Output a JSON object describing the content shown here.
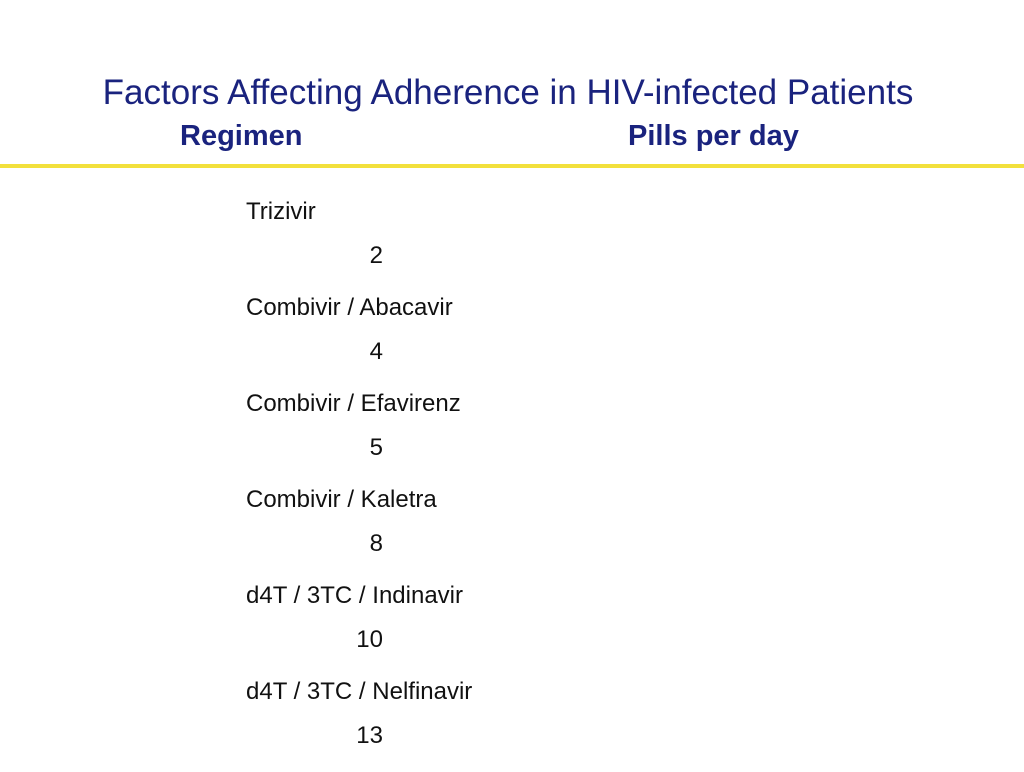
{
  "slide": {
    "title": "Factors Affecting Adherence in HIV-infected Patients",
    "columns": {
      "regimen": "Regimen",
      "pills": "Pills per day"
    },
    "accent_color": "#f2e03c",
    "title_color": "#1a237e",
    "rows": [
      {
        "regimen": "Trizivir",
        "pills": "2"
      },
      {
        "regimen": "Combivir / Abacavir",
        "pills": "4"
      },
      {
        "regimen": "Combivir / Efavirenz",
        "pills": "5"
      },
      {
        "regimen": "Combivir / Kaletra",
        "pills": "8"
      },
      {
        "regimen": "d4T / 3TC / Indinavir",
        "pills": "10"
      },
      {
        "regimen": "d4T / 3TC / Nelfinavir",
        "pills": "13"
      }
    ]
  }
}
